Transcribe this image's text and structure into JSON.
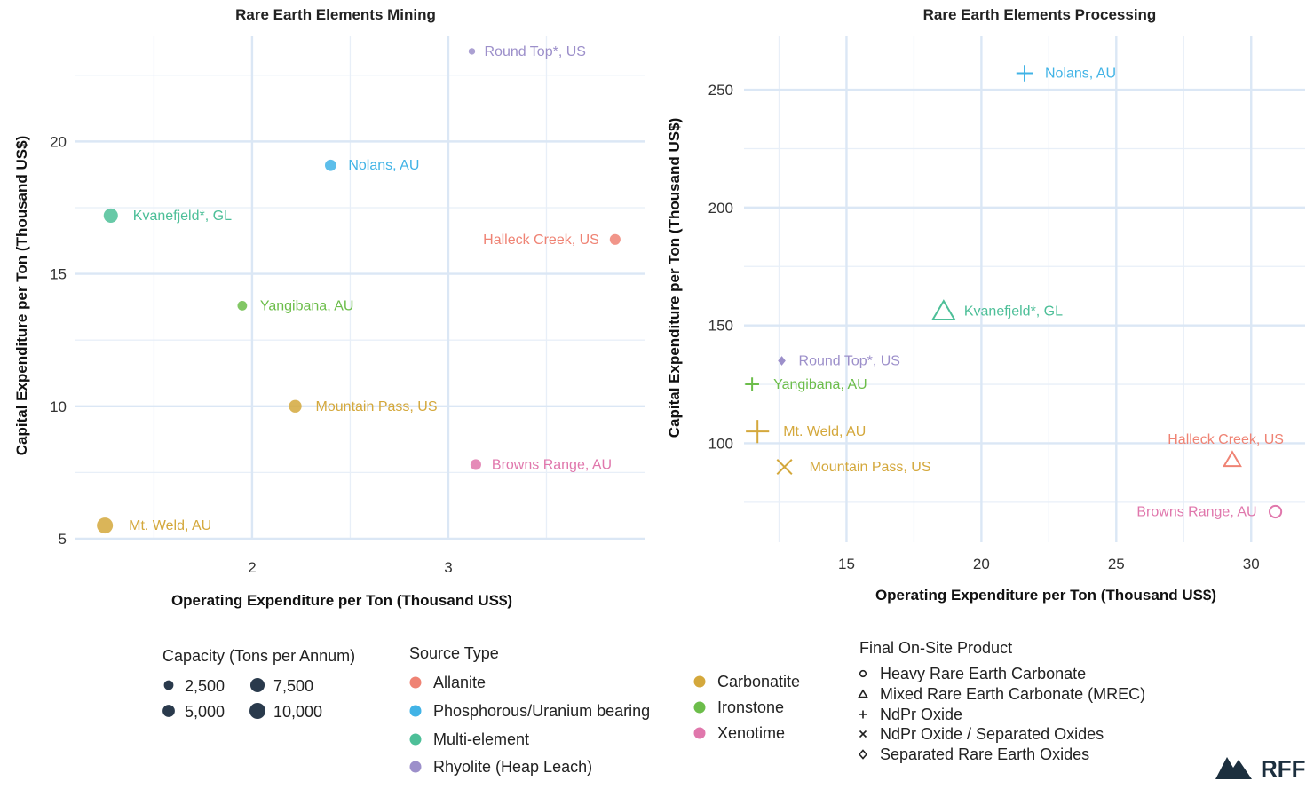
{
  "colors": {
    "Allanite": "#ef8374",
    "Phosphorous/Uranium bearing": "#41b3e6",
    "Multi-element": "#4dbf98",
    "Rhyolite (Heap Leach)": "#9c8fca",
    "Carbonatite": "#d4a83c",
    "Ironstone": "#6cbd4a",
    "Xenotime": "#e077ac"
  },
  "chart_data": [
    {
      "type": "scatter",
      "title": "Rare Earth Elements Mining",
      "xlabel": "Operating Expenditure per Ton (Thousand US$)",
      "ylabel": "Capital Expenditure per Ton (Thousand US$)",
      "xlim": [
        1.1,
        4.0
      ],
      "ylim": [
        5.0,
        24.0
      ],
      "x_ticks": [
        2,
        3
      ],
      "y_ticks": [
        5,
        10,
        15,
        20
      ],
      "grid": true,
      "points": [
        {
          "label": "Round Top*, US",
          "x": 3.12,
          "y": 23.4,
          "capacity": 700,
          "source": "Rhyolite (Heap Leach)"
        },
        {
          "label": "Nolans, AU",
          "x": 2.4,
          "y": 19.1,
          "capacity": 4000,
          "source": "Phosphorous/Uranium bearing"
        },
        {
          "label": "Kvanefjeld*, GL",
          "x": 1.28,
          "y": 17.2,
          "capacity": 7500,
          "source": "Multi-element"
        },
        {
          "label": "Halleck Creek, US",
          "x": 3.85,
          "y": 16.3,
          "capacity": 3500,
          "source": "Allanite"
        },
        {
          "label": "Yangibana, AU",
          "x": 1.95,
          "y": 13.8,
          "capacity": 2500,
          "source": "Ironstone"
        },
        {
          "label": "Mountain Pass, US",
          "x": 2.22,
          "y": 10.0,
          "capacity": 5500,
          "source": "Carbonatite"
        },
        {
          "label": "Browns Range, AU",
          "x": 3.14,
          "y": 7.8,
          "capacity": 3500,
          "source": "Xenotime"
        },
        {
          "label": "Mt. Weld, AU",
          "x": 1.25,
          "y": 5.5,
          "capacity": 10000,
          "source": "Carbonatite"
        }
      ]
    },
    {
      "type": "scatter",
      "title": "Rare Earth Elements Processing",
      "xlabel": "Operating Expenditure per Ton (Thousand US$)",
      "ylabel": "Capital Expenditure per Ton (Thousand US$)",
      "xlim": [
        11.2,
        32.0
      ],
      "ylim": [
        58.0,
        273.0
      ],
      "x_ticks": [
        15,
        20,
        25,
        30
      ],
      "y_ticks": [
        100,
        150,
        200,
        250
      ],
      "grid": true,
      "points": [
        {
          "label": "Nolans, AU",
          "x": 21.6,
          "y": 257,
          "capacity": 4000,
          "source": "Phosphorous/Uranium bearing",
          "product": "NdPr Oxide"
        },
        {
          "label": "Kvanefjeld*, GL",
          "x": 18.6,
          "y": 156,
          "capacity": 7500,
          "source": "Multi-element",
          "product": "Mixed Rare Earth Carbonate (MREC)"
        },
        {
          "label": "Round Top*, US",
          "x": 12.6,
          "y": 135,
          "capacity": 700,
          "source": "Rhyolite (Heap Leach)",
          "product": "Separated Rare Earth Oxides"
        },
        {
          "label": "Yangibana, AU",
          "x": 11.5,
          "y": 125,
          "capacity": 2500,
          "source": "Ironstone",
          "product": "NdPr Oxide"
        },
        {
          "label": "Mt. Weld, AU",
          "x": 11.7,
          "y": 105,
          "capacity": 10000,
          "source": "Carbonatite",
          "product": "NdPr Oxide"
        },
        {
          "label": "Mountain Pass, US",
          "x": 12.7,
          "y": 90,
          "capacity": 5500,
          "source": "Carbonatite",
          "product": "NdPr Oxide / Separated Oxides"
        },
        {
          "label": "Halleck Creek, US",
          "x": 29.3,
          "y": 93,
          "capacity": 3500,
          "source": "Allanite",
          "product": "Mixed Rare Earth Carbonate (MREC)"
        },
        {
          "label": "Browns Range, AU",
          "x": 30.9,
          "y": 71,
          "capacity": 3500,
          "source": "Xenotime",
          "product": "Heavy Rare Earth Carbonate"
        }
      ]
    }
  ],
  "legends": {
    "capacity": {
      "title": "Capacity (Tons per Annum)",
      "items": [
        {
          "label": "2,500",
          "value": 2500
        },
        {
          "label": "7,500",
          "value": 7500
        },
        {
          "label": "5,000",
          "value": 5000
        },
        {
          "label": "10,000",
          "value": 10000
        }
      ]
    },
    "source_type": {
      "title": "Source Type",
      "items": [
        "Allanite",
        "Phosphorous/Uranium bearing",
        "Multi-element",
        "Rhyolite (Heap Leach)",
        "Carbonatite",
        "Ironstone",
        "Xenotime"
      ]
    },
    "product": {
      "title": "Final On-Site Product",
      "items": [
        {
          "label": "Heavy Rare Earth Carbonate",
          "shape": "circle"
        },
        {
          "label": "Mixed Rare Earth Carbonate (MREC)",
          "shape": "triangle"
        },
        {
          "label": "NdPr Oxide",
          "shape": "plus"
        },
        {
          "label": "NdPr Oxide / Separated Oxides",
          "shape": "cross"
        },
        {
          "label": "Separated Rare Earth Oxides",
          "shape": "diamond"
        }
      ]
    }
  },
  "logo": {
    "text": "RFF"
  }
}
